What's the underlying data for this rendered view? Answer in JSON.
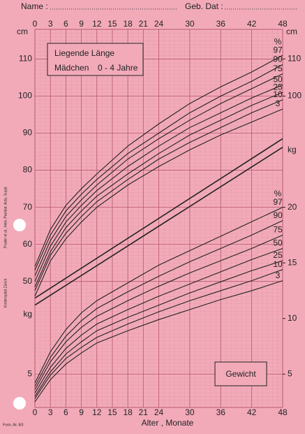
{
  "header": {
    "name_label": "Name :",
    "date_label": "Geb. Dat :"
  },
  "side_notes": [
    "Kinderspital Zürich",
    "Prader et al., Helv. Paediat. Acta, Suppl."
  ],
  "form_no": "Form.-Nr. 8/3",
  "chart_data": [
    {
      "type": "line",
      "title": "Liegende Länge",
      "subtitle": "Mädchen",
      "age_range": "0 - 4 Jahre",
      "xlabel": "Alter   ,   Monate",
      "ylabel": "cm",
      "legend_title": "%",
      "x": [
        0,
        3,
        6,
        9,
        12,
        18,
        24,
        30,
        36,
        42,
        48
      ],
      "xlim": [
        0,
        48
      ],
      "xticks": [
        0,
        3,
        6,
        9,
        12,
        15,
        18,
        21,
        24,
        30,
        36,
        42,
        48
      ],
      "ylim": [
        16,
        118
      ],
      "yticks": [
        50,
        60,
        70,
        80,
        90,
        100,
        110
      ],
      "yticks_right": [
        100,
        110
      ],
      "series": [
        {
          "name": "97",
          "color": "#222222",
          "values": [
            54,
            64,
            70.5,
            75,
            79,
            86.5,
            92.5,
            98,
            102.5,
            106.5,
            111
          ]
        },
        {
          "name": "90",
          "color": "#222222",
          "values": [
            53,
            62.5,
            69,
            73.5,
            77.5,
            84.5,
            90,
            95.5,
            100,
            104,
            108.5
          ]
        },
        {
          "name": "75",
          "color": "#222222",
          "values": [
            51.5,
            61,
            67.5,
            72,
            76,
            83,
            88.5,
            93.5,
            98,
            102,
            106
          ]
        },
        {
          "name": "50",
          "color": "#222222",
          "values": [
            50,
            59.5,
            66,
            70.5,
            74.5,
            81,
            86.5,
            91.5,
            95.5,
            99.5,
            103
          ]
        },
        {
          "name": "25",
          "color": "#222222",
          "values": [
            48.5,
            58,
            64.5,
            69,
            73,
            79,
            84.5,
            89.5,
            93.5,
            97.5,
            101
          ]
        },
        {
          "name": "10",
          "color": "#222222",
          "values": [
            47.5,
            57,
            63,
            67.5,
            71.5,
            77.5,
            83,
            87.5,
            91.5,
            95.5,
            99
          ]
        },
        {
          "name": "3",
          "color": "#222222",
          "values": [
            46,
            55.5,
            61.5,
            66,
            70,
            76,
            81,
            85.5,
            89.5,
            93,
            96.5
          ]
        }
      ],
      "lines": [
        {
          "color": "#222222",
          "x": [
            0,
            48
          ],
          "values": [
            45.5,
            88.5
          ]
        },
        {
          "color": "#222222",
          "x": [
            0,
            48
          ],
          "values": [
            43.6,
            86.2
          ]
        }
      ]
    },
    {
      "type": "line",
      "title": "Gewicht",
      "ylabel": "kg",
      "legend_title": "%",
      "x": [
        0,
        3,
        6,
        9,
        12,
        18,
        24,
        30,
        36,
        42,
        48
      ],
      "xlim": [
        0,
        48
      ],
      "ylim": [
        2,
        36
      ],
      "yticks": [
        5
      ],
      "yticks_right": [
        5,
        10,
        15,
        20
      ],
      "series": [
        {
          "name": "97",
          "color": "#222222",
          "values": [
            4.2,
            7,
            9,
            10.5,
            11.6,
            13.2,
            14.8,
            16.1,
            17.4,
            18.7,
            20
          ]
        },
        {
          "name": "90",
          "color": "#222222",
          "values": [
            3.9,
            6.5,
            8.4,
            9.8,
            10.9,
            12.4,
            13.8,
            15.1,
            16.3,
            17.5,
            18.8
          ]
        },
        {
          "name": "75",
          "color": "#222222",
          "values": [
            3.6,
            6.1,
            7.9,
            9.2,
            10.2,
            11.6,
            12.9,
            14.1,
            15.2,
            16.3,
            17.5
          ]
        },
        {
          "name": "50",
          "color": "#222222",
          "values": [
            3.3,
            5.6,
            7.3,
            8.5,
            9.5,
            10.8,
            12.0,
            13.1,
            14.2,
            15.3,
            16.3
          ]
        },
        {
          "name": "25",
          "color": "#222222",
          "values": [
            3.0,
            5.2,
            6.8,
            7.9,
            8.9,
            10.1,
            11.2,
            12.3,
            13.3,
            14.3,
            15.2
          ]
        },
        {
          "name": "10",
          "color": "#222222",
          "values": [
            2.8,
            4.9,
            6.4,
            7.4,
            8.3,
            9.5,
            10.6,
            11.6,
            12.5,
            13.4,
            14.4
          ]
        },
        {
          "name": "3",
          "color": "#222222",
          "values": [
            2.5,
            4.5,
            5.9,
            6.9,
            7.8,
            8.9,
            9.9,
            10.8,
            11.7,
            12.5,
            13.4
          ]
        }
      ]
    }
  ]
}
